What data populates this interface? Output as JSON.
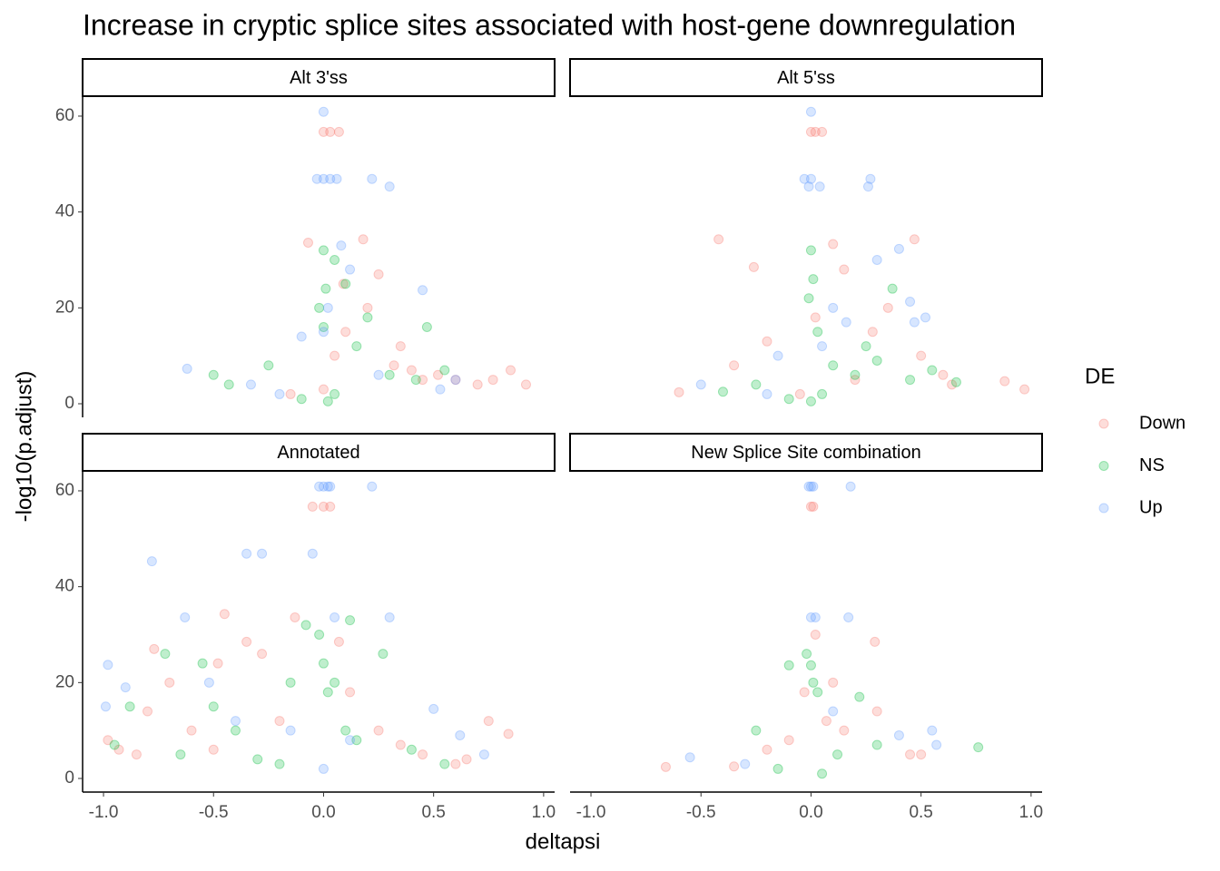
{
  "title": "Increase in cryptic splice sites associated with host-gene downregulation",
  "x_label": "deltapsi",
  "y_label": "-log10(p.adjust)",
  "legend_title": "DE",
  "chart_data": [
    {
      "type": "scatter",
      "title": "Alt 3'ss",
      "xlim": [
        -1.095,
        1.05
      ],
      "ylim": [
        -2.84,
        63.97
      ],
      "yticks": [
        0,
        20,
        40,
        60
      ],
      "series": [
        {
          "name": "Down",
          "color": "#F8766D",
          "x": [
            0.0,
            0.03,
            0.07,
            -0.07,
            0.18,
            0.25,
            0.32,
            0.4,
            0.45,
            0.52,
            0.6,
            0.7,
            0.77,
            0.85,
            0.92,
            -0.15,
            0.1,
            0.2,
            0.35,
            0.05,
            0.0,
            0.09
          ],
          "values": [
            56.7,
            56.7,
            56.7,
            33.6,
            34.3,
            27,
            8,
            7,
            5,
            6,
            5,
            4,
            5,
            7,
            4,
            2,
            15,
            20,
            12,
            10,
            3,
            25
          ]
        },
        {
          "name": "NS",
          "color": "#00BA38",
          "x": [
            0,
            0.01,
            -0.02,
            0.05,
            0.1,
            -0.43,
            -0.5,
            -0.25,
            0.0,
            0.15,
            0.3,
            0.42,
            0.55,
            0.05,
            -0.1,
            0.2,
            0.47,
            0.02
          ],
          "values": [
            32,
            24,
            20,
            30,
            25,
            4,
            6,
            8,
            16,
            12,
            6,
            5,
            7,
            2,
            1,
            18,
            16,
            0.5
          ]
        },
        {
          "name": "Up",
          "color": "#619CFF",
          "x": [
            0,
            0,
            0.03,
            -0.03,
            0.06,
            0.22,
            0.3,
            0.45,
            -0.62,
            -0.33,
            0.0,
            -0.1,
            0.12,
            0.25,
            0.53,
            0.6,
            0.08,
            0.02,
            -0.2
          ],
          "values": [
            60.9,
            46.9,
            46.9,
            46.9,
            46.9,
            46.9,
            45.3,
            23.7,
            7.3,
            4,
            15,
            14,
            28,
            6,
            3,
            5,
            33,
            20,
            2
          ]
        }
      ]
    },
    {
      "type": "scatter",
      "title": "Alt 5'ss",
      "xlim": [
        -1.095,
        1.05
      ],
      "ylim": [
        -2.84,
        63.97
      ],
      "series": [
        {
          "name": "Down",
          "color": "#F8766D",
          "x": [
            0,
            0.02,
            0.05,
            -0.42,
            -0.26,
            -0.2,
            -0.35,
            0.1,
            0.15,
            0.28,
            0.35,
            0.47,
            0.5,
            0.6,
            0.64,
            0.88,
            0.97,
            -0.6,
            0.2,
            0.02,
            -0.05
          ],
          "values": [
            56.7,
            56.7,
            56.7,
            34.3,
            28.5,
            13,
            8,
            33.3,
            28,
            15,
            20,
            34.3,
            10,
            6,
            4,
            4.7,
            3,
            2.4,
            5,
            18,
            2
          ]
        },
        {
          "name": "NS",
          "color": "#00BA38",
          "x": [
            0,
            0.01,
            -0.01,
            0.03,
            0.37,
            0.45,
            0.66,
            -0.4,
            -0.25,
            0.1,
            0.2,
            0.25,
            0.05,
            -0.1,
            0.3,
            0.55,
            0.0
          ],
          "values": [
            32,
            26,
            22,
            15,
            24,
            5,
            4.5,
            2.5,
            4,
            8,
            6,
            12,
            2,
            1,
            9,
            7,
            0.5
          ]
        },
        {
          "name": "Up",
          "color": "#619CFF",
          "x": [
            0,
            0,
            -0.01,
            0.04,
            -0.03,
            0.26,
            0.27,
            0.4,
            0.45,
            0.16,
            -0.5,
            -0.15,
            0.1,
            0.3,
            0.47,
            0.52,
            0.05,
            -0.2
          ],
          "values": [
            60.9,
            46.9,
            45.3,
            45.3,
            46.9,
            45.3,
            46.9,
            32.3,
            21.3,
            17,
            4,
            10,
            20,
            30,
            17,
            18,
            12,
            2
          ]
        }
      ]
    },
    {
      "type": "scatter",
      "title": "Annotated",
      "xlim": [
        -1.095,
        1.05
      ],
      "ylim": [
        -2.84,
        63.97
      ],
      "yticks": [
        0,
        20,
        40,
        60
      ],
      "xticks": [
        {
          "value": -1,
          "label": "-1.0"
        },
        -0.5,
        {
          "value": 0,
          "label": "0.0"
        },
        0.5,
        {
          "value": 1,
          "label": "1.0"
        }
      ],
      "series": [
        {
          "name": "Down",
          "color": "#F8766D",
          "x": [
            -0.98,
            -0.93,
            -0.85,
            -0.77,
            -0.7,
            -0.6,
            -0.5,
            -0.45,
            -0.35,
            -0.28,
            -0.2,
            -0.13,
            -0.05,
            0.0,
            0.03,
            0.07,
            0.12,
            0.25,
            0.35,
            0.45,
            0.6,
            0.65,
            0.75,
            0.84,
            -0.48,
            -0.8
          ],
          "values": [
            8,
            6,
            5,
            27,
            20,
            10,
            6,
            34.3,
            28.5,
            26,
            12,
            33.6,
            56.7,
            56.7,
            56.7,
            28.5,
            18,
            10,
            7,
            5,
            3,
            4,
            12,
            9.3,
            24,
            14
          ]
        },
        {
          "name": "NS",
          "color": "#00BA38",
          "x": [
            -0.95,
            -0.88,
            -0.72,
            -0.55,
            -0.5,
            -0.4,
            -0.3,
            -0.15,
            -0.08,
            0.0,
            0.02,
            -0.02,
            0.05,
            0.1,
            0.15,
            0.27,
            0.4,
            0.55,
            0.12,
            -0.2,
            -0.65
          ],
          "values": [
            7,
            15,
            26,
            24,
            15,
            10,
            4,
            20,
            32,
            24,
            18,
            30,
            20,
            10,
            8,
            26,
            6,
            3,
            33,
            3,
            5
          ]
        },
        {
          "name": "Up",
          "color": "#619CFF",
          "x": [
            -0.98,
            -0.99,
            -0.9,
            -0.78,
            -0.63,
            -0.52,
            -0.35,
            -0.28,
            -0.05,
            0.0,
            0.02,
            -0.02,
            0.03,
            0.05,
            0.22,
            0.3,
            0.5,
            0.62,
            0.73,
            -0.15,
            0.12,
            -0.4,
            0.0
          ],
          "values": [
            23.7,
            15,
            19,
            45.3,
            33.6,
            20,
            46.9,
            46.9,
            46.9,
            60.9,
            60.9,
            60.9,
            60.9,
            33.6,
            60.9,
            33.6,
            14.5,
            9,
            5,
            10,
            8,
            12,
            2
          ]
        }
      ]
    },
    {
      "type": "scatter",
      "title": "New Splice Site combination",
      "xlim": [
        -1.095,
        1.05
      ],
      "ylim": [
        -2.84,
        63.97
      ],
      "xticks": [
        {
          "value": -1,
          "label": "-1.0"
        },
        -0.5,
        {
          "value": 0,
          "label": "0.0"
        },
        0.5,
        {
          "value": 1,
          "label": "1.0"
        }
      ],
      "series": [
        {
          "name": "Down",
          "color": "#F8766D",
          "x": [
            0,
            0.01,
            -0.66,
            -0.35,
            -0.2,
            -0.1,
            0.1,
            0.15,
            0.29,
            0.3,
            0.45,
            0.5,
            0.07,
            -0.03,
            0.02
          ],
          "values": [
            56.7,
            56.7,
            2.4,
            2.5,
            6,
            8,
            20,
            10,
            28.5,
            14,
            5,
            5,
            12,
            18,
            30
          ]
        },
        {
          "name": "NS",
          "color": "#00BA38",
          "x": [
            -0.25,
            -0.1,
            0.0,
            0.01,
            -0.02,
            0.03,
            0.22,
            0.76,
            0.3,
            0.12,
            -0.15,
            0.05
          ],
          "values": [
            10,
            23.6,
            23.6,
            20,
            26,
            18,
            17,
            6.5,
            7,
            5,
            2,
            1
          ]
        },
        {
          "name": "Up",
          "color": "#619CFF",
          "x": [
            0,
            0.01,
            -0.01,
            0.18,
            0.0,
            0.02,
            0.17,
            -0.55,
            0.4,
            0.55,
            0.57,
            -0.3,
            0.1
          ],
          "values": [
            60.9,
            60.9,
            60.9,
            60.9,
            33.6,
            33.6,
            33.6,
            4.4,
            9,
            10,
            7,
            3,
            14
          ]
        }
      ]
    }
  ]
}
